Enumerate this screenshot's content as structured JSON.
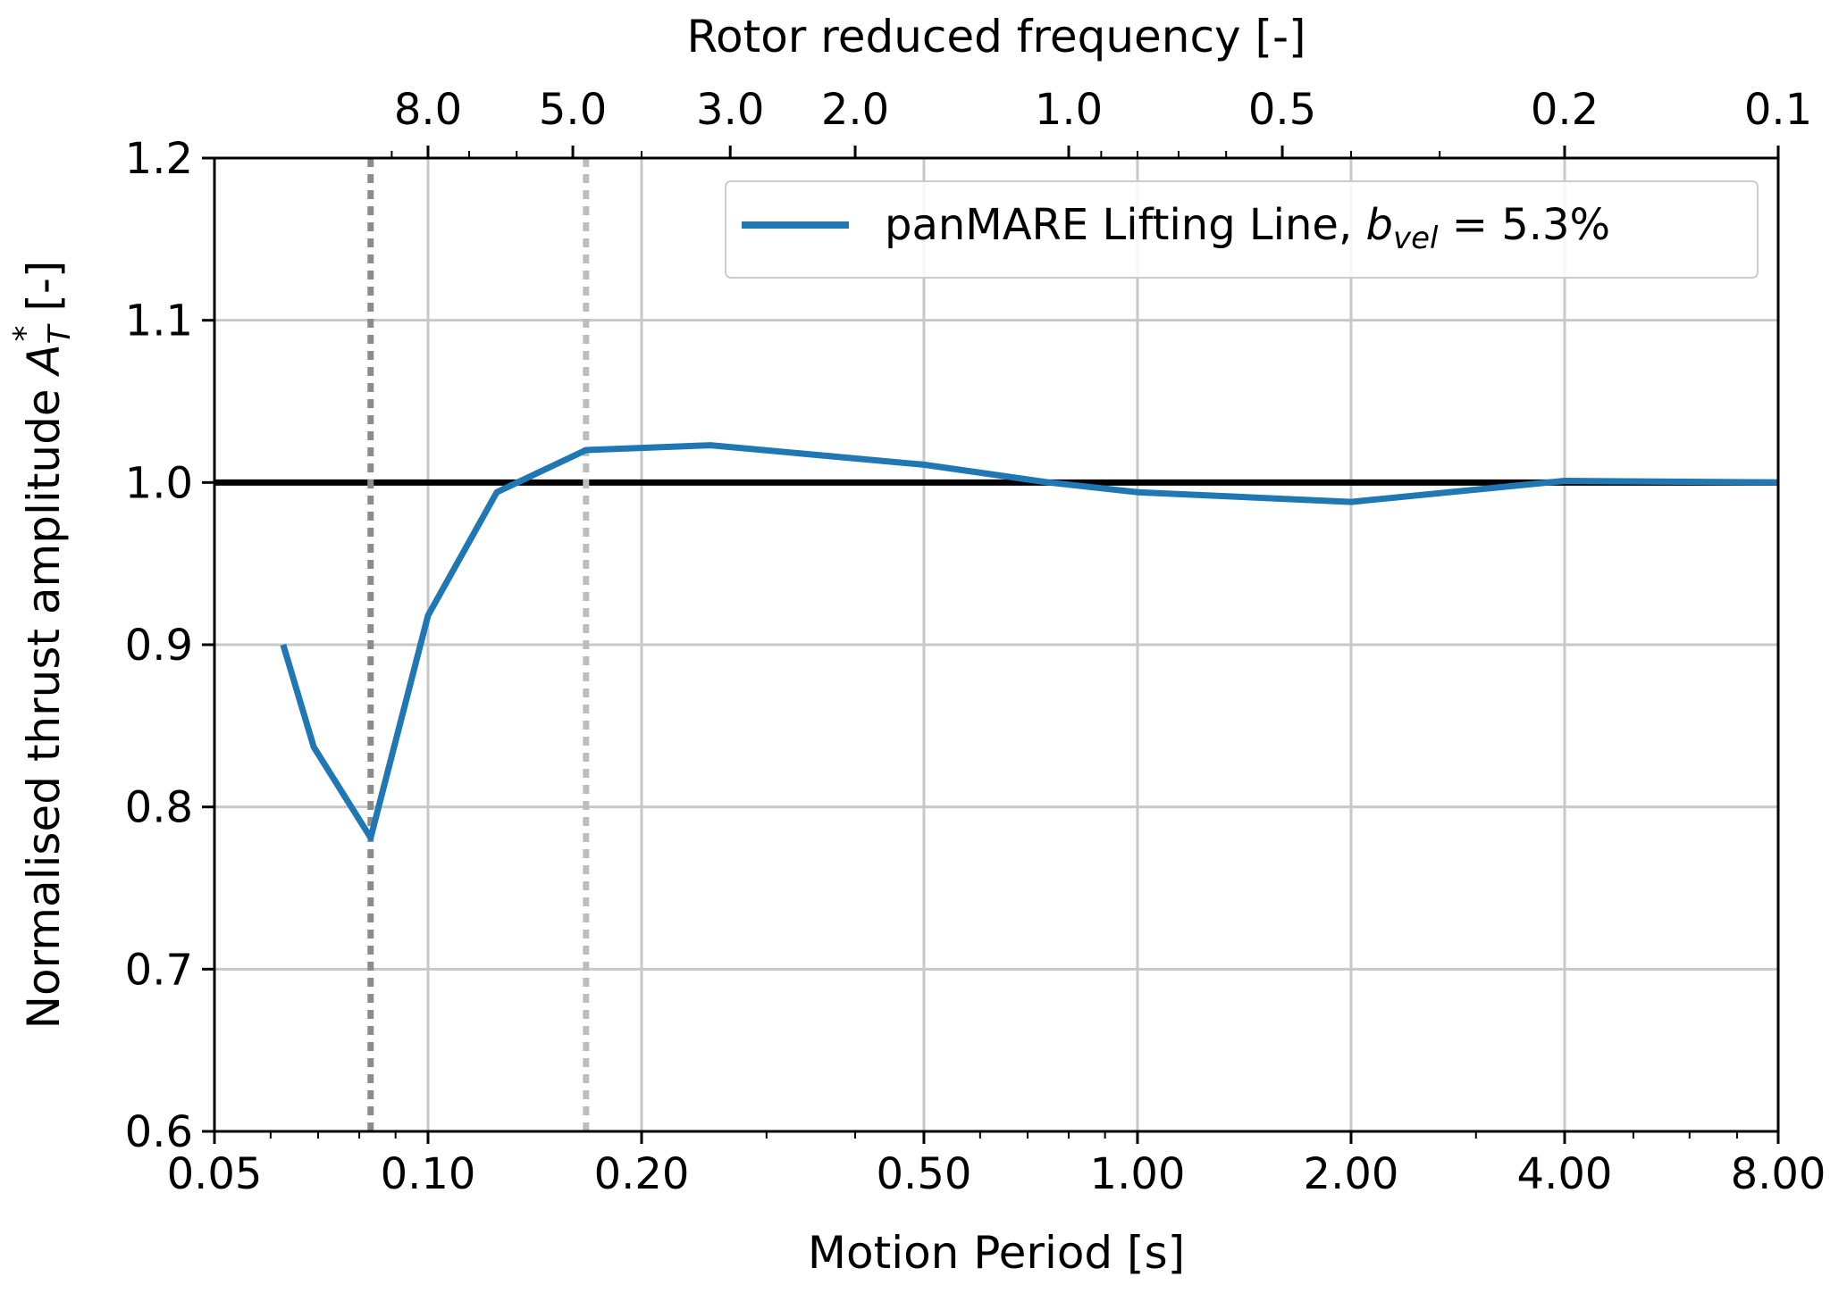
{
  "chart_data": {
    "type": "line",
    "xlabel": "Motion Period [s]",
    "x2label": "Rotor reduced frequency [-]",
    "ylabel_main": "Normalised thrust amplitude ",
    "ylabel_symbol": "A",
    "ylabel_sub": "T",
    "ylabel_sup": "*",
    "ylabel_unit": " [-]",
    "xscale": "log",
    "xlim": [
      0.05,
      8.0
    ],
    "ylim": [
      0.6,
      1.2
    ],
    "grid": true,
    "legend_position": "top-right",
    "x_ticks": [
      {
        "value": 0.05,
        "label": "0.05"
      },
      {
        "value": 0.1,
        "label": "0.10"
      },
      {
        "value": 0.2,
        "label": "0.20"
      },
      {
        "value": 0.5,
        "label": "0.50"
      },
      {
        "value": 1.0,
        "label": "1.00"
      },
      {
        "value": 2.0,
        "label": "2.00"
      },
      {
        "value": 4.0,
        "label": "4.00"
      },
      {
        "value": 8.0,
        "label": "8.00"
      }
    ],
    "y_ticks": [
      {
        "value": 0.6,
        "label": "0.6"
      },
      {
        "value": 0.7,
        "label": "0.7"
      },
      {
        "value": 0.8,
        "label": "0.8"
      },
      {
        "value": 0.9,
        "label": "0.9"
      },
      {
        "value": 1.0,
        "label": "1.0"
      },
      {
        "value": 1.1,
        "label": "1.1"
      },
      {
        "value": 1.2,
        "label": "1.2"
      }
    ],
    "top_ticks": [
      {
        "value": 8.0,
        "label": "8.0"
      },
      {
        "value": 5.0,
        "label": "5.0"
      },
      {
        "value": 3.0,
        "label": "3.0"
      },
      {
        "value": 2.0,
        "label": "2.0"
      },
      {
        "value": 1.0,
        "label": "1.0"
      },
      {
        "value": 0.5,
        "label": "0.5"
      },
      {
        "value": 0.2,
        "label": "0.2"
      },
      {
        "value": 0.1,
        "label": "0.1"
      }
    ],
    "top_minor_ticks": [
      9.0,
      7.0,
      6.0,
      4.0,
      0.9,
      0.8,
      0.7,
      0.6,
      0.4,
      0.3,
      0.09,
      0.08
    ],
    "reference_lines": [
      {
        "orientation": "horizontal",
        "y": 1.0,
        "color": "#000000",
        "style": "solid"
      },
      {
        "orientation": "vertical",
        "x": 0.083,
        "color": "#8c8c8c",
        "style": "dotted"
      },
      {
        "orientation": "vertical",
        "x": 0.167,
        "color": "#bdbdbd",
        "style": "dotted"
      }
    ],
    "series": [
      {
        "name_main": "panMARE Lifting Line, ",
        "name_symbol": "b",
        "name_sub": "vel",
        "name_tail": " = 5.3%",
        "color": "#1f77b4",
        "x": [
          0.0625,
          0.069,
          0.083,
          0.1,
          0.125,
          0.167,
          0.25,
          0.5,
          0.75,
          1.0,
          2.0,
          4.0,
          8.0
        ],
        "y": [
          0.9,
          0.837,
          0.781,
          0.918,
          0.994,
          1.02,
          1.023,
          1.011,
          1.0,
          0.994,
          0.988,
          1.001,
          1.0
        ]
      }
    ]
  }
}
